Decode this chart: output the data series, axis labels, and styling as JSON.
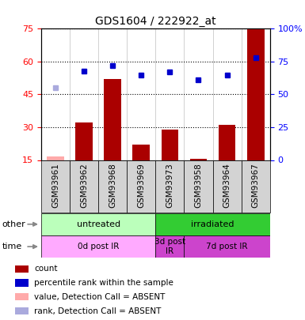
{
  "title": "GDS1604 / 222922_at",
  "samples": [
    "GSM93961",
    "GSM93962",
    "GSM93968",
    "GSM93969",
    "GSM93973",
    "GSM93958",
    "GSM93964",
    "GSM93967"
  ],
  "bar_values": [
    16.5,
    32,
    52,
    22,
    29,
    15.5,
    31,
    75
  ],
  "bar_absent": [
    true,
    false,
    false,
    false,
    false,
    false,
    false,
    false
  ],
  "dot_values": [
    55,
    68,
    72,
    65,
    67,
    61,
    65,
    78
  ],
  "dot_absent": [
    true,
    false,
    false,
    false,
    false,
    false,
    false,
    false
  ],
  "ylim_left": [
    15,
    75
  ],
  "ylim_right": [
    0,
    100
  ],
  "yticks_left": [
    15,
    30,
    45,
    60,
    75
  ],
  "yticks_right": [
    0,
    25,
    50,
    75,
    100
  ],
  "ytick_labels_right": [
    "0",
    "25",
    "50",
    "75",
    "100%"
  ],
  "bar_color": "#aa0000",
  "bar_absent_color": "#ffaaaa",
  "dot_color": "#0000cc",
  "dot_absent_color": "#aaaadd",
  "other_row": [
    {
      "label": "untreated",
      "start": 0,
      "end": 4,
      "color": "#bbffbb"
    },
    {
      "label": "irradiated",
      "start": 4,
      "end": 8,
      "color": "#33cc33"
    }
  ],
  "time_row": [
    {
      "label": "0d post IR",
      "start": 0,
      "end": 4,
      "color": "#ffaaff"
    },
    {
      "label": "3d post\nIR",
      "start": 4,
      "end": 5,
      "color": "#cc44cc"
    },
    {
      "label": "7d post IR",
      "start": 5,
      "end": 8,
      "color": "#cc44cc"
    }
  ],
  "legend_items": [
    {
      "label": "count",
      "color": "#aa0000"
    },
    {
      "label": "percentile rank within the sample",
      "color": "#0000cc"
    },
    {
      "label": "value, Detection Call = ABSENT",
      "color": "#ffaaaa"
    },
    {
      "label": "rank, Detection Call = ABSENT",
      "color": "#aaaadd"
    }
  ]
}
